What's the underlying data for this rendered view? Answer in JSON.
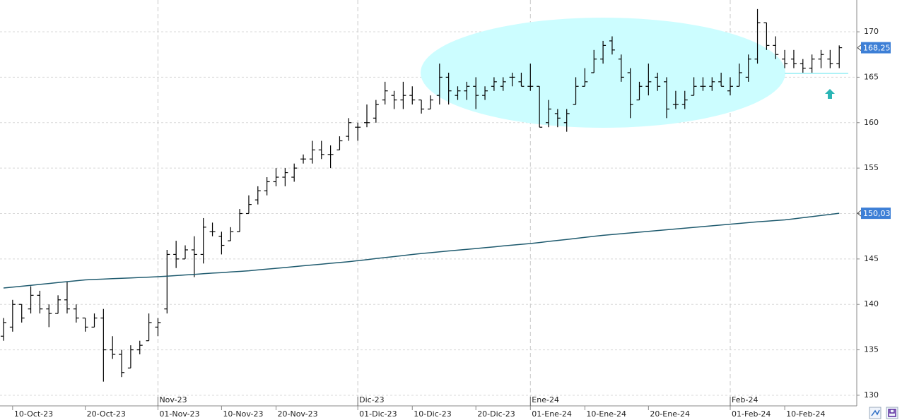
{
  "chart_data": {
    "type": "ohlc",
    "categories": [
      null,
      "10-Oct-23",
      null,
      null,
      null,
      null,
      null,
      null,
      null,
      "20-Oct-23",
      null,
      null,
      null,
      null,
      null,
      null,
      null,
      "01-Nov-23",
      null,
      null,
      null,
      null,
      null,
      null,
      "10-Nov-23",
      null,
      null,
      null,
      null,
      null,
      "20-Nov-23",
      null,
      null,
      null,
      null,
      null,
      null,
      null,
      null,
      "01-Dic-23",
      null,
      null,
      null,
      null,
      null,
      "10-Dic-23",
      null,
      null,
      null,
      null,
      null,
      null,
      "20-Dic-23",
      null,
      null,
      null,
      null,
      null,
      "01-Ene-24",
      null,
      null,
      null,
      null,
      null,
      "10-Ene-24",
      null,
      null,
      null,
      null,
      null,
      null,
      "20-Ene-24",
      null,
      null,
      null,
      null,
      null,
      null,
      null,
      null,
      "01-Feb-24",
      null,
      null,
      null,
      null,
      null,
      "10-Feb-24",
      null,
      null,
      null,
      null,
      null,
      null
    ],
    "month_labels": [
      null,
      null,
      null,
      null,
      null,
      null,
      null,
      null,
      null,
      null,
      null,
      null,
      null,
      null,
      null,
      null,
      null,
      "Nov-23",
      null,
      null,
      null,
      null,
      null,
      null,
      null,
      null,
      null,
      null,
      null,
      null,
      null,
      null,
      null,
      null,
      null,
      null,
      null,
      null,
      null,
      "Dic-23",
      null,
      null,
      null,
      null,
      null,
      null,
      null,
      null,
      null,
      null,
      null,
      null,
      null,
      null,
      null,
      null,
      null,
      null,
      "Ene-24",
      null,
      null,
      null,
      null,
      null,
      null,
      null,
      null,
      null,
      null,
      null,
      null,
      null,
      null,
      null,
      null,
      null,
      null,
      null,
      null,
      null,
      "Feb-24",
      null,
      null,
      null,
      null,
      null,
      null,
      null,
      null,
      null,
      null,
      null,
      null
    ],
    "ohlc": {
      "color": "#000000",
      "open": [
        136.5,
        137.5,
        140,
        139.5,
        141,
        139.5,
        139,
        140.5,
        139.5,
        138.5,
        137.5,
        138.5,
        135,
        134.5,
        133,
        135,
        136,
        137.5,
        139.5,
        145.5,
        145,
        146,
        145.5,
        148,
        147.5,
        147,
        148,
        150,
        151.5,
        152.5,
        153.5,
        154,
        154,
        156,
        156,
        157,
        156.5,
        157,
        158.5,
        159.5,
        160,
        160.5,
        162.5,
        163,
        162.5,
        163,
        162.5,
        161.5,
        163,
        165,
        163,
        163.5,
        164,
        163,
        164,
        164,
        165,
        164.5,
        164,
        164,
        160,
        161,
        160,
        162,
        164,
        165.5,
        167,
        169,
        167,
        165.5,
        162.5,
        164,
        165,
        164.5,
        162,
        162,
        163,
        164,
        164,
        164.5,
        163.5,
        164,
        165,
        167,
        171,
        168.5,
        167,
        167,
        166.5,
        166,
        167,
        167,
        166.5
      ],
      "high": [
        138.5,
        140.5,
        140,
        142,
        141.5,
        140,
        141,
        142.5,
        140,
        138.5,
        139,
        139.5,
        136.5,
        135,
        135.5,
        136,
        139,
        138.5,
        146,
        147,
        146.5,
        147.5,
        149.5,
        149,
        148,
        148.5,
        150.5,
        152,
        153,
        154,
        155,
        155,
        155.5,
        156.5,
        158,
        158,
        157.5,
        158.5,
        160.5,
        160,
        162,
        162.5,
        164.5,
        163.5,
        164.5,
        164,
        162.5,
        163,
        166.5,
        165.5,
        164,
        164.5,
        165,
        164,
        165,
        165,
        165.5,
        165.5,
        166.5,
        164,
        162.5,
        161.5,
        161.5,
        165,
        166,
        168,
        169,
        169.5,
        167.5,
        166,
        164.5,
        166.5,
        165.5,
        165,
        163.5,
        163.5,
        165,
        165,
        165,
        165.5,
        165,
        166.5,
        167.5,
        172.5,
        171,
        169.5,
        168,
        168,
        167,
        167.5,
        168,
        168,
        168.5
      ],
      "low": [
        136,
        137,
        138,
        139,
        139,
        137.5,
        139,
        139,
        138,
        137,
        137.5,
        131.5,
        134,
        132,
        133,
        134.5,
        136,
        136.5,
        139,
        144,
        145,
        143,
        144.5,
        147.5,
        145.5,
        147,
        148,
        150,
        151,
        152,
        153,
        153,
        153.5,
        155.5,
        155.5,
        156,
        155,
        157,
        158,
        158,
        159.5,
        160,
        162,
        161.5,
        161.5,
        162,
        161,
        161.5,
        162,
        162,
        162.5,
        162.5,
        161.5,
        162.5,
        163.5,
        163.5,
        164,
        164,
        163.5,
        159.5,
        159.5,
        159.5,
        159,
        162,
        164,
        165.5,
        166.5,
        167.5,
        164.5,
        160.5,
        162.5,
        163,
        163.5,
        160.5,
        161.5,
        161.5,
        163,
        163.5,
        163.5,
        164,
        163,
        164,
        164.5,
        166.5,
        168,
        167,
        166,
        166,
        165.5,
        165.5,
        166,
        166,
        166
      ],
      "close": [
        138,
        140,
        138.5,
        141,
        139.5,
        139,
        140.5,
        139.5,
        138.5,
        137.5,
        138.5,
        135,
        134.5,
        132.5,
        135,
        135.5,
        138,
        138,
        145.5,
        145,
        146,
        145.5,
        148.5,
        148,
        146.5,
        148,
        150,
        151,
        152.5,
        153.5,
        154,
        154.5,
        155,
        156,
        157,
        156.5,
        156.5,
        158,
        160,
        159.5,
        160,
        162,
        163.5,
        162.5,
        163,
        162.5,
        161.5,
        162.5,
        165,
        163.5,
        163.5,
        164,
        163,
        163.5,
        164.5,
        164.5,
        165,
        164,
        164,
        159.5,
        161.5,
        160.5,
        161,
        164,
        164.5,
        167,
        168.5,
        168,
        165,
        162,
        164,
        164.5,
        164,
        161.5,
        162,
        162.5,
        164,
        164,
        164.5,
        164,
        164,
        165.5,
        167,
        171,
        168.5,
        167.5,
        166.5,
        166.5,
        166,
        167,
        167.5,
        166.5,
        168.25
      ]
    },
    "moving_average": {
      "color": "#1e5a6e",
      "values": [
        141.8,
        141.9,
        142.0,
        142.1,
        142.2,
        142.3,
        142.4,
        142.5,
        142.6,
        142.7,
        142.74,
        142.78,
        142.83,
        142.87,
        142.91,
        142.96,
        143.0,
        143.05,
        143.1,
        143.17,
        143.24,
        143.3,
        143.37,
        143.44,
        143.5,
        143.57,
        143.63,
        143.7,
        143.79,
        143.88,
        143.97,
        144.06,
        144.15,
        144.25,
        144.34,
        144.43,
        144.52,
        144.61,
        144.7,
        144.81,
        144.92,
        145.04,
        145.15,
        145.26,
        145.38,
        145.49,
        145.6,
        145.69,
        145.78,
        145.88,
        145.97,
        146.06,
        146.15,
        146.24,
        146.33,
        146.43,
        146.52,
        146.61,
        146.7,
        146.81,
        146.93,
        147.04,
        147.15,
        147.26,
        147.38,
        147.49,
        147.6,
        147.69,
        147.78,
        147.86,
        147.95,
        148.04,
        148.13,
        148.21,
        148.3,
        148.39,
        148.48,
        148.56,
        148.65,
        148.74,
        148.83,
        148.91,
        149.0,
        149.08,
        149.15,
        149.23,
        149.3,
        149.42,
        149.54,
        149.66,
        149.79,
        149.91,
        150.03
      ]
    },
    "price_tags": [
      {
        "value": 168.25,
        "label": "168,25"
      },
      {
        "value": 150.03,
        "label": "150,03"
      }
    ],
    "tag_color": "#3d7fd6",
    "ylim": [
      128.83,
      173.5
    ],
    "yticks": [
      130,
      135,
      140,
      145,
      150,
      155,
      160,
      165,
      170
    ],
    "grid": true
  }
}
